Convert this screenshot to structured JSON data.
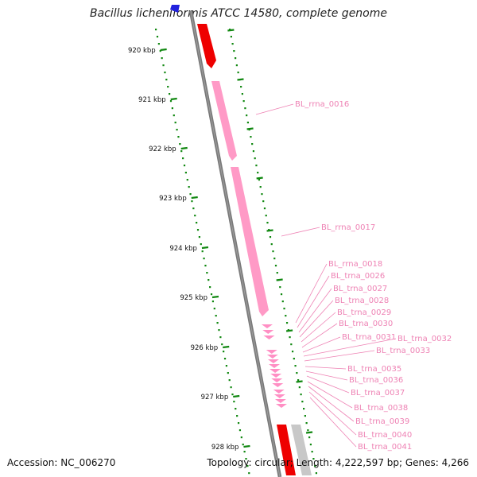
{
  "title": "Bacillus licheniformis ATCC 14580, complete genome",
  "footer": {
    "accession": "Accession: NC_006270",
    "summary": "Topology: circular; Length: 4,222,597 bp; Genes: 4,266"
  },
  "ticks": [
    "920 kbp",
    "921 kbp",
    "922 kbp",
    "923 kbp",
    "924 kbp",
    "925 kbp",
    "926 kbp",
    "927 kbp",
    "928 kbp"
  ],
  "colors": {
    "backbone": "#7a7a7a",
    "rrna": "#ff9ac6",
    "trna": "#ff8fc4",
    "cds_red": "#ee0000",
    "other_gene": "#c8c8c8",
    "tick_green": "#118811",
    "label_pink": "#ee82b4",
    "marker_blue": "#2222dd"
  },
  "gene_labels": [
    "BL_rrna_0016",
    "BL_rrna_0017",
    "BL_rrna_0018",
    "BL_trna_0026",
    "BL_trna_0027",
    "BL_trna_0028",
    "BL_trna_0029",
    "BL_trna_0030",
    "BL_trna_0031",
    "BL_trna_0032",
    "BL_trna_0033",
    "BL_trna_0035",
    "BL_trna_0036",
    "BL_trna_0037",
    "BL_trna_0038",
    "BL_trna_0039",
    "BL_trna_0040",
    "BL_trna_0041"
  ]
}
